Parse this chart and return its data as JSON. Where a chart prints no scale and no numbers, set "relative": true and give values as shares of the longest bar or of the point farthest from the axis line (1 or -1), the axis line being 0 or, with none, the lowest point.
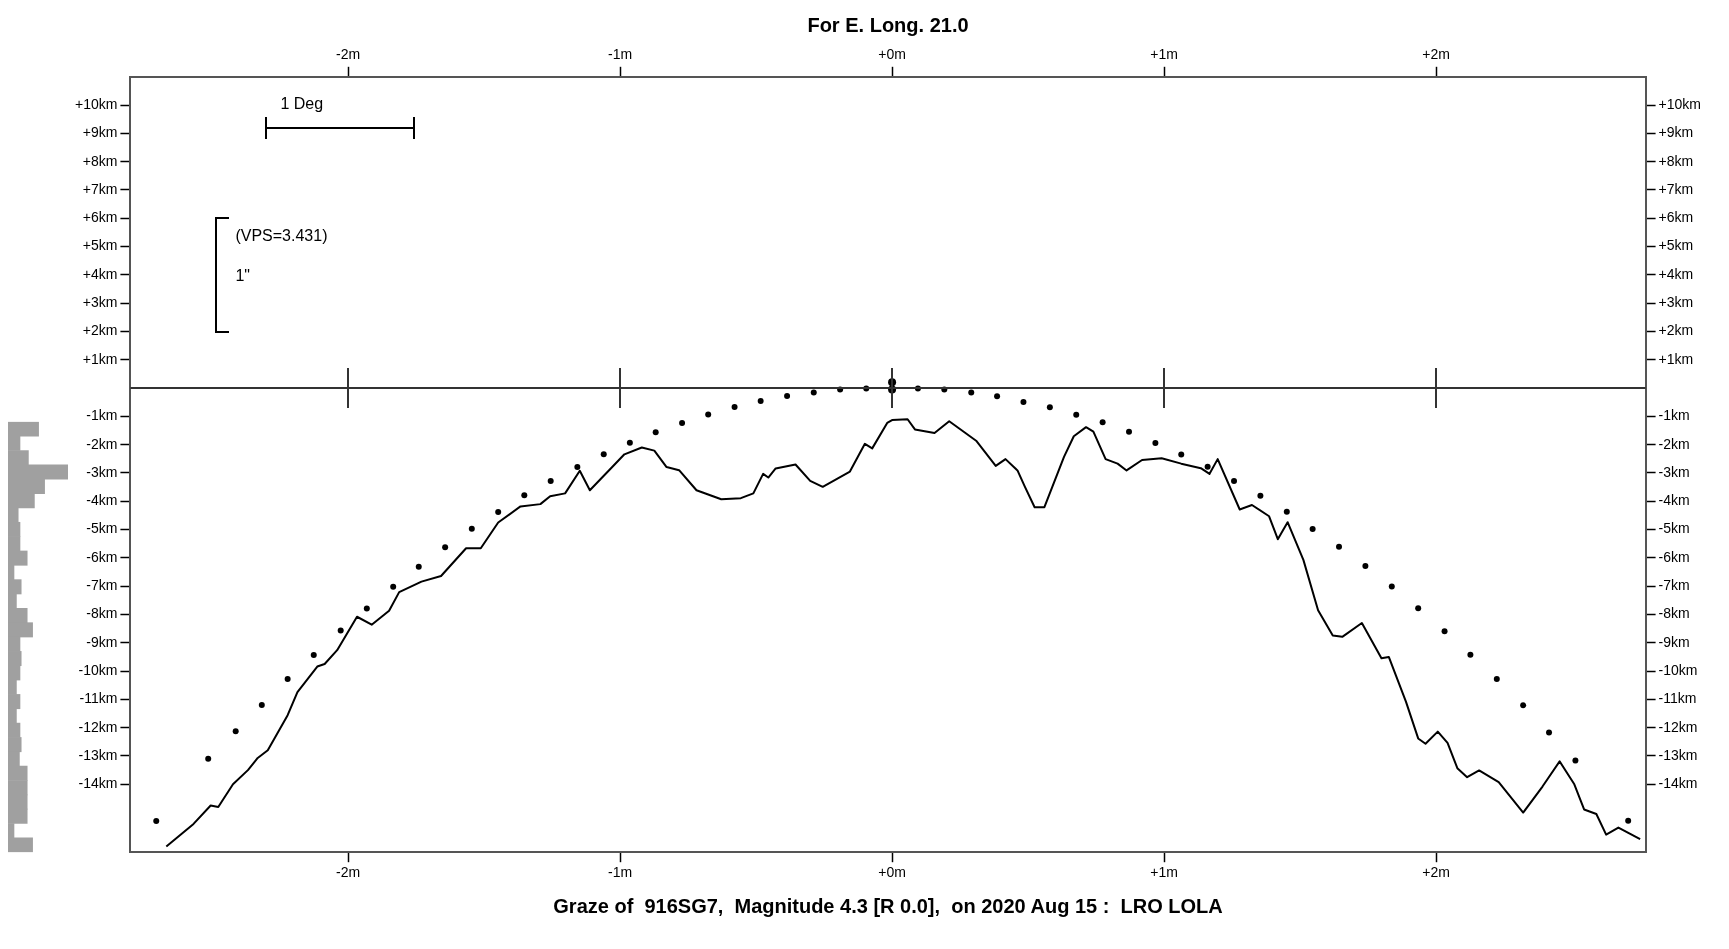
{
  "chart_data": [
    {
      "type": "bar",
      "orientation": "horizontal",
      "relative": true,
      "color": "#a0a0a0",
      "categories": [
        null,
        null,
        null,
        null,
        null,
        null,
        null,
        null,
        null,
        null,
        null,
        null,
        null,
        null,
        null,
        null,
        null,
        null,
        null,
        null,
        null,
        null,
        null,
        null,
        null,
        null,
        null,
        null,
        null,
        null
      ],
      "values": [
        0.51,
        0.2,
        0.34,
        1,
        0.61,
        0.44,
        0.17,
        0.2,
        0.2,
        0.32,
        0.1,
        0.22,
        0.14,
        0.32,
        0.41,
        0.2,
        0.22,
        0.2,
        0.14,
        0.2,
        0.14,
        0.2,
        0.22,
        0.19,
        0.32,
        0.32,
        0.32,
        0.32,
        0.1,
        0.41
      ]
    },
    {
      "type": "line",
      "title": "Graze of  916SG7,  Magnitude 4.3 [R 0.0],  on 2020 Aug 15 :  LRO LOLA",
      "subtitle": "For E. Long. 21.0",
      "annotations": [
        "1 Deg",
        "(VPS=3.431)",
        "1\""
      ],
      "xlim": [
        -2.8,
        2.77
      ],
      "xticks": [
        {
          "value": -2,
          "label": "-2m"
        },
        {
          "value": -1,
          "label": "-1m"
        },
        {
          "value": 0,
          "label": "+0m"
        },
        {
          "value": 1,
          "label": "+1m"
        },
        {
          "value": 2,
          "label": "+2m"
        }
      ],
      "x2lim": [
        -2.8,
        2.77
      ],
      "x2ticks": [
        {
          "value": -2,
          "label": "-2m"
        },
        {
          "value": -1,
          "label": "-1m"
        },
        {
          "value": 0,
          "label": "+0m"
        },
        {
          "value": 1,
          "label": "+1m"
        },
        {
          "value": 2,
          "label": "+2m"
        }
      ],
      "ylim": [
        -16.4,
        11
      ],
      "yticks": [
        {
          "value": 10,
          "label": "+10km"
        },
        {
          "value": 9,
          "label": "+9km"
        },
        {
          "value": 8,
          "label": "+8km"
        },
        {
          "value": 7,
          "label": "+7km"
        },
        {
          "value": 6,
          "label": "+6km"
        },
        {
          "value": 5,
          "label": "+5km"
        },
        {
          "value": 4,
          "label": "+4km"
        },
        {
          "value": 3,
          "label": "+3km"
        },
        {
          "value": 2,
          "label": "+2km"
        },
        {
          "value": 1,
          "label": "+1km"
        },
        {
          "value": -1,
          "label": "-1km"
        },
        {
          "value": -2,
          "label": "-2km"
        },
        {
          "value": -3,
          "label": "-3km"
        },
        {
          "value": -4,
          "label": "-4km"
        },
        {
          "value": -5,
          "label": "-5km"
        },
        {
          "value": -6,
          "label": "-6km"
        },
        {
          "value": -7,
          "label": "-7km"
        },
        {
          "value": -8,
          "label": "-8km"
        },
        {
          "value": -9,
          "label": "-9km"
        },
        {
          "value": -10,
          "label": "-10km"
        },
        {
          "value": -11,
          "label": "-11km"
        },
        {
          "value": -12,
          "label": "-12km"
        },
        {
          "value": -13,
          "label": "-13km"
        },
        {
          "value": -14,
          "label": "-14km"
        }
      ],
      "y2lim": [
        -16.4,
        11
      ],
      "y2ticks": [
        {
          "value": 10,
          "label": "+10km"
        },
        {
          "value": 9,
          "label": "+9km"
        },
        {
          "value": 8,
          "label": "+8km"
        },
        {
          "value": 7,
          "label": "+7km"
        },
        {
          "value": 6,
          "label": "+6km"
        },
        {
          "value": 5,
          "label": "+5km"
        },
        {
          "value": 4,
          "label": "+4km"
        },
        {
          "value": 3,
          "label": "+3km"
        },
        {
          "value": 2,
          "label": "+2km"
        },
        {
          "value": 1,
          "label": "+1km"
        },
        {
          "value": -1,
          "label": "-1km"
        },
        {
          "value": -2,
          "label": "-2km"
        },
        {
          "value": -3,
          "label": "-3km"
        },
        {
          "value": -4,
          "label": "-4km"
        },
        {
          "value": -5,
          "label": "-5km"
        },
        {
          "value": -6,
          "label": "-6km"
        },
        {
          "value": -7,
          "label": "-7km"
        },
        {
          "value": -8,
          "label": "-8km"
        },
        {
          "value": -9,
          "label": "-9km"
        },
        {
          "value": -10,
          "label": "-10km"
        },
        {
          "value": -11,
          "label": "-11km"
        },
        {
          "value": -12,
          "label": "-12km"
        },
        {
          "value": -13,
          "label": "-13km"
        },
        {
          "value": -14,
          "label": "-14km"
        }
      ],
      "ref_lines": [
        {
          "axis": "y",
          "value": 0,
          "color": "#333333"
        }
      ],
      "legend": false,
      "grid": false,
      "series": [
        {
          "type": "line",
          "color": "#000000",
          "marker": "none",
          "line_style": "solid",
          "x": [
            -2.668,
            -2.568,
            -2.505,
            -2.477,
            -2.423,
            -2.368,
            -2.332,
            -2.295,
            -2.222,
            -2.186,
            -2.113,
            -2.086,
            -2.04,
            -1.967,
            -1.913,
            -1.849,
            -1.812,
            -1.73,
            -1.658,
            -1.566,
            -1.512,
            -1.448,
            -1.366,
            -1.293,
            -1.257,
            -1.202,
            -1.148,
            -1.111,
            -1.02,
            -0.984,
            -0.92,
            -0.874,
            -0.829,
            -0.783,
            -0.719,
            -0.628,
            -0.556,
            -0.51,
            -0.474,
            -0.455,
            -0.428,
            -0.355,
            -0.301,
            -0.255,
            -0.155,
            -0.1,
            -0.073,
            -0.018,
            0,
            0.057,
            0.084,
            0.156,
            0.21,
            0.309,
            0.381,
            0.417,
            0.461,
            0.488,
            0.524,
            0.56,
            0.632,
            0.668,
            0.713,
            0.74,
            0.785,
            0.829,
            0.862,
            0.919,
            0.991,
            1.063,
            1.135,
            1.167,
            1.197,
            1.278,
            1.323,
            1.386,
            1.418,
            1.454,
            1.512,
            1.566,
            1.62,
            1.655,
            1.727,
            1.799,
            1.826,
            1.889,
            1.934,
            1.961,
            2.006,
            2.042,
            2.078,
            2.114,
            2.158,
            2.23,
            2.32,
            2.391,
            2.454,
            2.508,
            2.544,
            2.589,
            2.625,
            2.67,
            2.75
          ],
          "values": [
            -16.2,
            -15.4,
            -14.75,
            -14.8,
            -14.0,
            -13.5,
            -13.07,
            -12.8,
            -11.56,
            -10.74,
            -9.84,
            -9.75,
            -9.26,
            -8.08,
            -8.36,
            -7.87,
            -7.21,
            -6.84,
            -6.64,
            -5.66,
            -5.66,
            -4.75,
            -4.18,
            -4.1,
            -3.82,
            -3.72,
            -2.92,
            -3.61,
            -2.7,
            -2.34,
            -2.1,
            -2.21,
            -2.79,
            -2.9,
            -3.61,
            -3.93,
            -3.89,
            -3.72,
            -3.03,
            -3.16,
            -2.84,
            -2.7,
            -3.28,
            -3.49,
            -2.95,
            -1.97,
            -2.13,
            -1.23,
            -1.13,
            -1.1,
            -1.46,
            -1.59,
            -1.17,
            -1.86,
            -2.75,
            -2.51,
            -2.91,
            -3.48,
            -4.21,
            -4.21,
            -2.43,
            -1.7,
            -1.38,
            -1.54,
            -2.51,
            -2.67,
            -2.91,
            -2.54,
            -2.48,
            -2.67,
            -2.83,
            -3.03,
            -2.51,
            -4.29,
            -4.13,
            -4.53,
            -5.34,
            -4.74,
            -6.07,
            -7.85,
            -8.74,
            -8.79,
            -8.3,
            -9.55,
            -9.5,
            -11.08,
            -12.38,
            -12.57,
            -12.14,
            -12.54,
            -13.43,
            -13.75,
            -13.51,
            -13.92,
            -15.0,
            -14.08,
            -13.19,
            -14.0,
            -14.89,
            -15.05,
            -15.78,
            -15.53,
            -15.94
          ]
        },
        {
          "type": "scatter",
          "color": "#000000",
          "marker": "circle",
          "x": [
            -2.705,
            -2.514,
            -2.413,
            -2.317,
            -2.222,
            -2.126,
            -2.027,
            -1.931,
            -1.834,
            -1.74,
            -1.643,
            -1.545,
            -1.448,
            -1.352,
            -1.255,
            -1.157,
            -1.06,
            -0.964,
            -0.869,
            -0.772,
            -0.676,
            -0.579,
            -0.483,
            -0.386,
            -0.288,
            -0.191,
            -0.095,
            0.095,
            0.192,
            0.291,
            0.386,
            0.483,
            0.58,
            0.677,
            0.774,
            0.871,
            0.968,
            1.063,
            1.16,
            1.257,
            1.354,
            1.451,
            1.546,
            1.643,
            1.74,
            1.837,
            1.934,
            2.031,
            2.126,
            2.223,
            2.32,
            2.415,
            2.512,
            2.706
          ],
          "values": [
            -15.3,
            -13.1,
            -12.13,
            -11.2,
            -10.28,
            -9.43,
            -8.57,
            -7.79,
            -7.02,
            -6.31,
            -5.62,
            -4.97,
            -4.38,
            -3.79,
            -3.28,
            -2.79,
            -2.34,
            -1.93,
            -1.56,
            -1.23,
            -0.93,
            -0.67,
            -0.46,
            -0.28,
            -0.16,
            -0.05,
            -0.01,
            -0.01,
            -0.05,
            -0.16,
            -0.29,
            -0.49,
            -0.68,
            -0.94,
            -1.21,
            -1.54,
            -1.94,
            -2.35,
            -2.78,
            -3.28,
            -3.8,
            -4.37,
            -4.98,
            -5.61,
            -6.29,
            -7.01,
            -7.78,
            -8.59,
            -9.42,
            -10.28,
            -11.21,
            -12.17,
            -13.16,
            -15.29
          ]
        },
        {
          "type": "scatter",
          "color": "#000000",
          "marker": "circle",
          "x": [
            0,
            0
          ],
          "values": [
            0.21,
            -0.05
          ]
        }
      ]
    }
  ]
}
